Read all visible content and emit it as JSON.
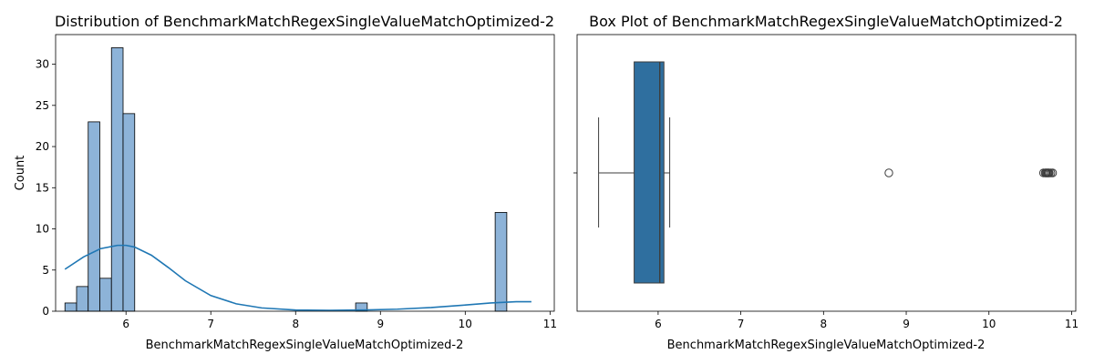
{
  "chart_data": [
    {
      "type": "histogram",
      "title": "Distribution of BenchmarkMatchRegexSingleValueMatchOptimized-2",
      "xlabel": "BenchmarkMatchRegexSingleValueMatchOptimized-2",
      "ylabel": "Count",
      "xlim": [
        5.17,
        11.05
      ],
      "ylim": [
        0,
        33.6
      ],
      "x_ticks": [
        6,
        7,
        8,
        9,
        10,
        11
      ],
      "y_ticks": [
        0,
        5,
        10,
        15,
        20,
        25,
        30
      ],
      "bin_start": 5.28,
      "bin_width": 0.1371,
      "counts": [
        1,
        3,
        23,
        4,
        32,
        24,
        0,
        0,
        0,
        0,
        0,
        0,
        0,
        0,
        0,
        0,
        0,
        0,
        0,
        0,
        0,
        0,
        0,
        0,
        0,
        1,
        0,
        0,
        0,
        0,
        0,
        0,
        0,
        0,
        0,
        0,
        0,
        12
      ],
      "bar_color": "#8db3d8",
      "kde": {
        "color": "#1f77b4",
        "x": [
          5.28,
          5.5,
          5.7,
          5.9,
          6.0,
          6.1,
          6.3,
          6.5,
          6.7,
          7.0,
          7.3,
          7.6,
          8.0,
          8.4,
          8.8,
          9.2,
          9.6,
          10.0,
          10.3,
          10.6,
          10.78
        ],
        "y": [
          5.1,
          6.6,
          7.6,
          8.0,
          8.0,
          7.8,
          6.8,
          5.3,
          3.7,
          1.9,
          0.9,
          0.4,
          0.15,
          0.1,
          0.15,
          0.25,
          0.45,
          0.75,
          1.0,
          1.15,
          1.15
        ]
      }
    },
    {
      "type": "box",
      "title": "Box Plot of BenchmarkMatchRegexSingleValueMatchOptimized-2",
      "xlabel": "BenchmarkMatchRegexSingleValueMatchOptimized-2",
      "xlim": [
        5.02,
        11.05
      ],
      "x_ticks": [
        6,
        7,
        8,
        9,
        10,
        11
      ],
      "box_color": "#2f6f9f",
      "whisker_low": 5.28,
      "q1": 5.71,
      "median": 6.02,
      "q3": 6.07,
      "whisker_high": 6.14,
      "outliers": [
        8.79,
        10.66,
        10.68,
        10.69,
        10.7,
        10.71,
        10.72,
        10.73,
        10.75,
        10.77
      ]
    }
  ]
}
